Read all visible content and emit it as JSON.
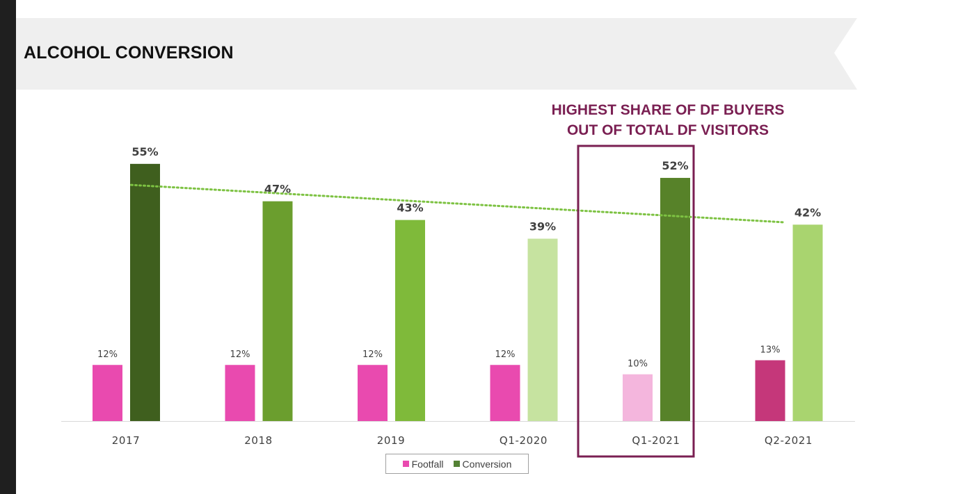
{
  "page": {
    "title": "ALCOHOL CONVERSION",
    "callout_lines": [
      "HIGHEST SHARE OF DF BUYERS",
      "OUT OF TOTAL DF VISITORS"
    ],
    "highlight_color": "#7a1f52"
  },
  "chart_data": {
    "type": "bar",
    "categories": [
      "2017",
      "2018",
      "2019",
      "Q1-2020",
      "Q1-2021",
      "Q2-2021"
    ],
    "series": [
      {
        "name": "Footfall",
        "values": [
          12,
          12,
          12,
          12,
          10,
          13
        ],
        "labels": [
          "12%",
          "12%",
          "12%",
          "12%",
          "10%",
          "13%"
        ],
        "legend_color": "#e94aaf",
        "colors": [
          "#e94aaf",
          "#e94aaf",
          "#e94aaf",
          "#e94aaf",
          "#f4b6dd",
          "#c5377a"
        ]
      },
      {
        "name": "Conversion",
        "values": [
          55,
          47,
          43,
          39,
          52,
          42
        ],
        "labels": [
          "55%",
          "47%",
          "43%",
          "39%",
          "52%",
          "42%"
        ],
        "legend_color": "#548235",
        "colors": [
          "#3f5f1e",
          "#6b9e2e",
          "#7fba3a",
          "#c6e3a0",
          "#578229",
          "#a9d46f"
        ]
      }
    ],
    "trendline": {
      "series": "Conversion",
      "start": 50.5,
      "end": 42.5,
      "color": "#7dc242",
      "style": "dotted"
    },
    "highlight_category": "Q1-2021",
    "ylim": [
      0,
      60
    ],
    "grid": false,
    "legend_position": "bottom-center",
    "xlabel": "",
    "ylabel": ""
  }
}
